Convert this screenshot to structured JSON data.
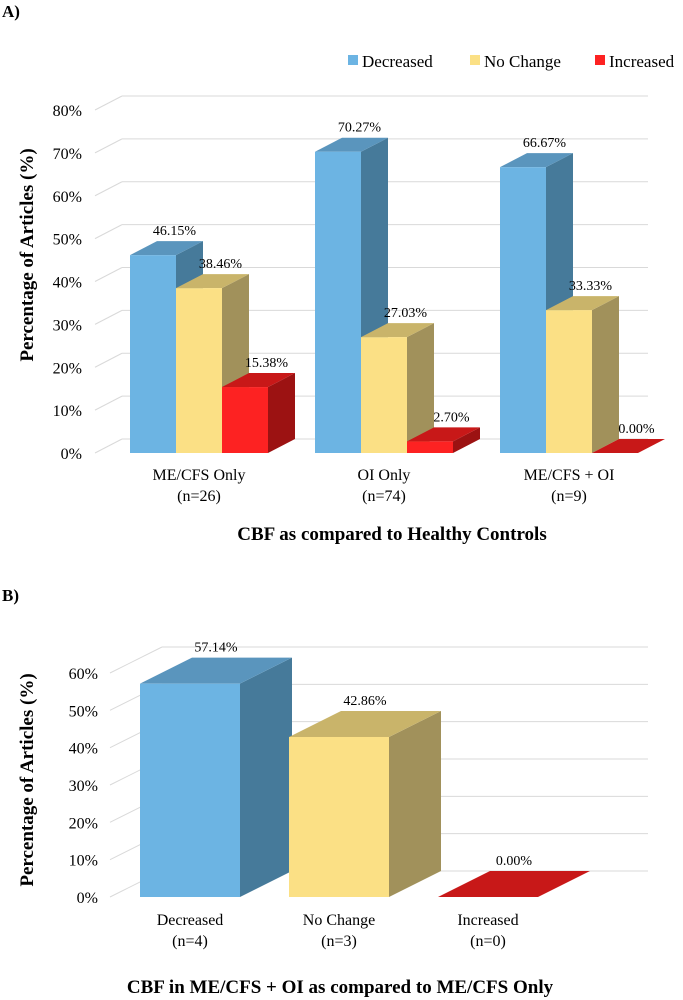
{
  "colors": {
    "decreased": {
      "front": "#6cb4e3",
      "side": "#467a9a",
      "top": "#5a95bd"
    },
    "no_change": {
      "front": "#fbe085",
      "side": "#a1915b",
      "top": "#c9b46a"
    },
    "increased": {
      "front": "#fd2222",
      "side": "#9c1212",
      "top": "#c81818"
    },
    "grid": "#d9d9d9"
  },
  "chart_data": [
    {
      "panel_label": "A)",
      "type": "bar",
      "title": "",
      "xlabel": "CBF as compared to Healthy Controls",
      "ylabel": "Percentage of Articles (%)",
      "ylim": [
        0,
        80
      ],
      "yticks": [
        "0%",
        "10%",
        "20%",
        "30%",
        "40%",
        "50%",
        "60%",
        "70%",
        "80%"
      ],
      "legend_position": "top-right",
      "categories": [
        {
          "line1": "ME/CFS Only",
          "line2": "(n=26)"
        },
        {
          "line1": "OI Only",
          "line2": "(n=74)"
        },
        {
          "line1": "ME/CFS + OI",
          "line2": "(n=9)"
        }
      ],
      "series": [
        {
          "name": "Decreased",
          "key": "decreased",
          "values": [
            46.15,
            70.27,
            66.67
          ],
          "labels": [
            "46.15%",
            "70.27%",
            "66.67%"
          ]
        },
        {
          "name": "No Change",
          "key": "no_change",
          "values": [
            38.46,
            27.03,
            33.33
          ],
          "labels": [
            "38.46%",
            "27.03%",
            "33.33%"
          ]
        },
        {
          "name": "Increased",
          "key": "increased",
          "values": [
            15.38,
            2.7,
            0.0
          ],
          "labels": [
            "15.38%",
            "2.70%",
            "0.00%"
          ]
        }
      ]
    },
    {
      "panel_label": "B)",
      "type": "bar",
      "title": "",
      "xlabel": "CBF in ME/CFS + OI as compared to ME/CFS Only",
      "ylabel": "Percentage of Articles (%)",
      "ylim": [
        0,
        60
      ],
      "yticks": [
        "0%",
        "10%",
        "20%",
        "30%",
        "40%",
        "50%",
        "60%"
      ],
      "categories": [
        {
          "line1": "Decreased",
          "line2": "(n=4)",
          "key": "decreased"
        },
        {
          "line1": "No Change",
          "line2": "(n=3)",
          "key": "no_change"
        },
        {
          "line1": "Increased",
          "line2": "(n=0)",
          "key": "increased"
        }
      ],
      "values": [
        57.14,
        42.86,
        0.0
      ],
      "labels": [
        "57.14%",
        "42.86%",
        "0.00%"
      ]
    }
  ]
}
